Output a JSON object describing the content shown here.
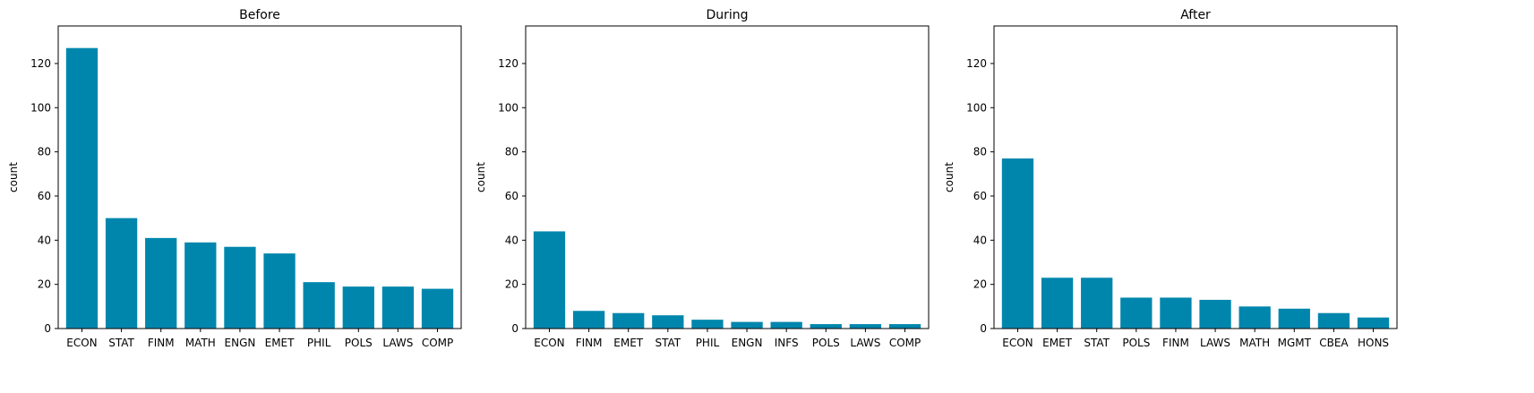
{
  "figure": {
    "bar_color": "#0086ad"
  },
  "chart_data": [
    {
      "type": "bar",
      "title": "Before",
      "xlabel": "",
      "ylabel": "count",
      "ylim": [
        0,
        137
      ],
      "yticks": [
        0,
        20,
        40,
        60,
        80,
        100,
        120
      ],
      "categories": [
        "ECON",
        "STAT",
        "FINM",
        "MATH",
        "ENGN",
        "EMET",
        "PHIL",
        "POLS",
        "LAWS",
        "COMP"
      ],
      "values": [
        127,
        50,
        41,
        39,
        37,
        34,
        21,
        19,
        19,
        18
      ]
    },
    {
      "type": "bar",
      "title": "During",
      "xlabel": "",
      "ylabel": "count",
      "ylim": [
        0,
        137
      ],
      "yticks": [
        0,
        20,
        40,
        60,
        80,
        100,
        120
      ],
      "categories": [
        "ECON",
        "FINM",
        "EMET",
        "STAT",
        "PHIL",
        "ENGN",
        "INFS",
        "POLS",
        "LAWS",
        "COMP"
      ],
      "values": [
        44,
        8,
        7,
        6,
        4,
        3,
        3,
        2,
        2,
        2
      ]
    },
    {
      "type": "bar",
      "title": "After",
      "xlabel": "",
      "ylabel": "count",
      "ylim": [
        0,
        137
      ],
      "yticks": [
        0,
        20,
        40,
        60,
        80,
        100,
        120
      ],
      "categories": [
        "ECON",
        "EMET",
        "STAT",
        "POLS",
        "FINM",
        "LAWS",
        "MATH",
        "MGMT",
        "CBEA",
        "HONS"
      ],
      "values": [
        77,
        23,
        23,
        14,
        14,
        13,
        10,
        9,
        7,
        5
      ]
    }
  ]
}
